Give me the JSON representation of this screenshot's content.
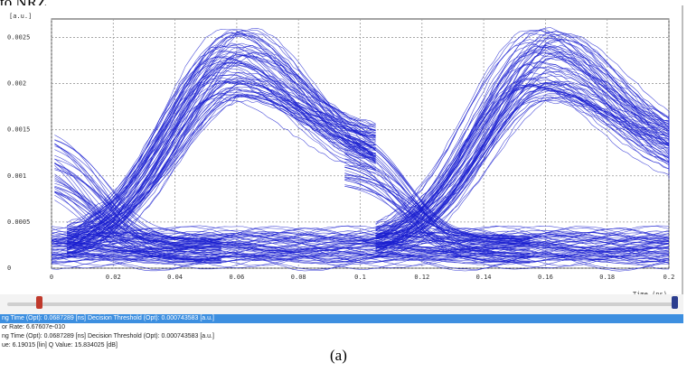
{
  "caption_top": "to NRZ.",
  "caption_bottom": "(a)",
  "plot": {
    "y_unit": "[a.u.]",
    "x_unit": "Time (ns)",
    "y_ticks": [
      "0",
      "0.0005",
      "0.001",
      "0.0015",
      "0.002",
      "0.0025"
    ],
    "x_ticks": [
      "0",
      "0.02",
      "0.04",
      "0.06",
      "0.08",
      "0.1",
      "0.12",
      "0.14",
      "0.16",
      "0.18",
      "0.2"
    ],
    "trace_color": "#1a1fd0",
    "grid_color": "#9a9a9a",
    "grid": true
  },
  "chart_data": {
    "type": "line",
    "title": "",
    "xlabel": "Time (ns)",
    "ylabel": "[a.u.]",
    "xlim": [
      0,
      0.2
    ],
    "ylim": [
      0,
      0.0027
    ],
    "eye": {
      "bit_period_ns": 0.1,
      "high_level_range": [
        0.0018,
        0.0026
      ],
      "low_level_range": [
        5e-05,
        0.0004
      ],
      "high_peak_x": [
        0.06,
        0.16
      ],
      "crossing_x": [
        0.015,
        0.115
      ]
    }
  },
  "slider": {
    "left_color": "#c0392b",
    "right_color": "#2c3e8f"
  },
  "status_lines": [
    "ng Time (Opt): 0.0687289 [ns] Decision Threshold (Opt): 0.000743583 [a.u.]",
    "or Rate: 6.67607e-010",
    "ng Time (Opt): 0.0687289 [ns] Decision Threshold (Opt): 0.000743583 [a.u.]",
    "ue: 6.19015 [lin] Q Value: 15.834025 [dB]"
  ]
}
